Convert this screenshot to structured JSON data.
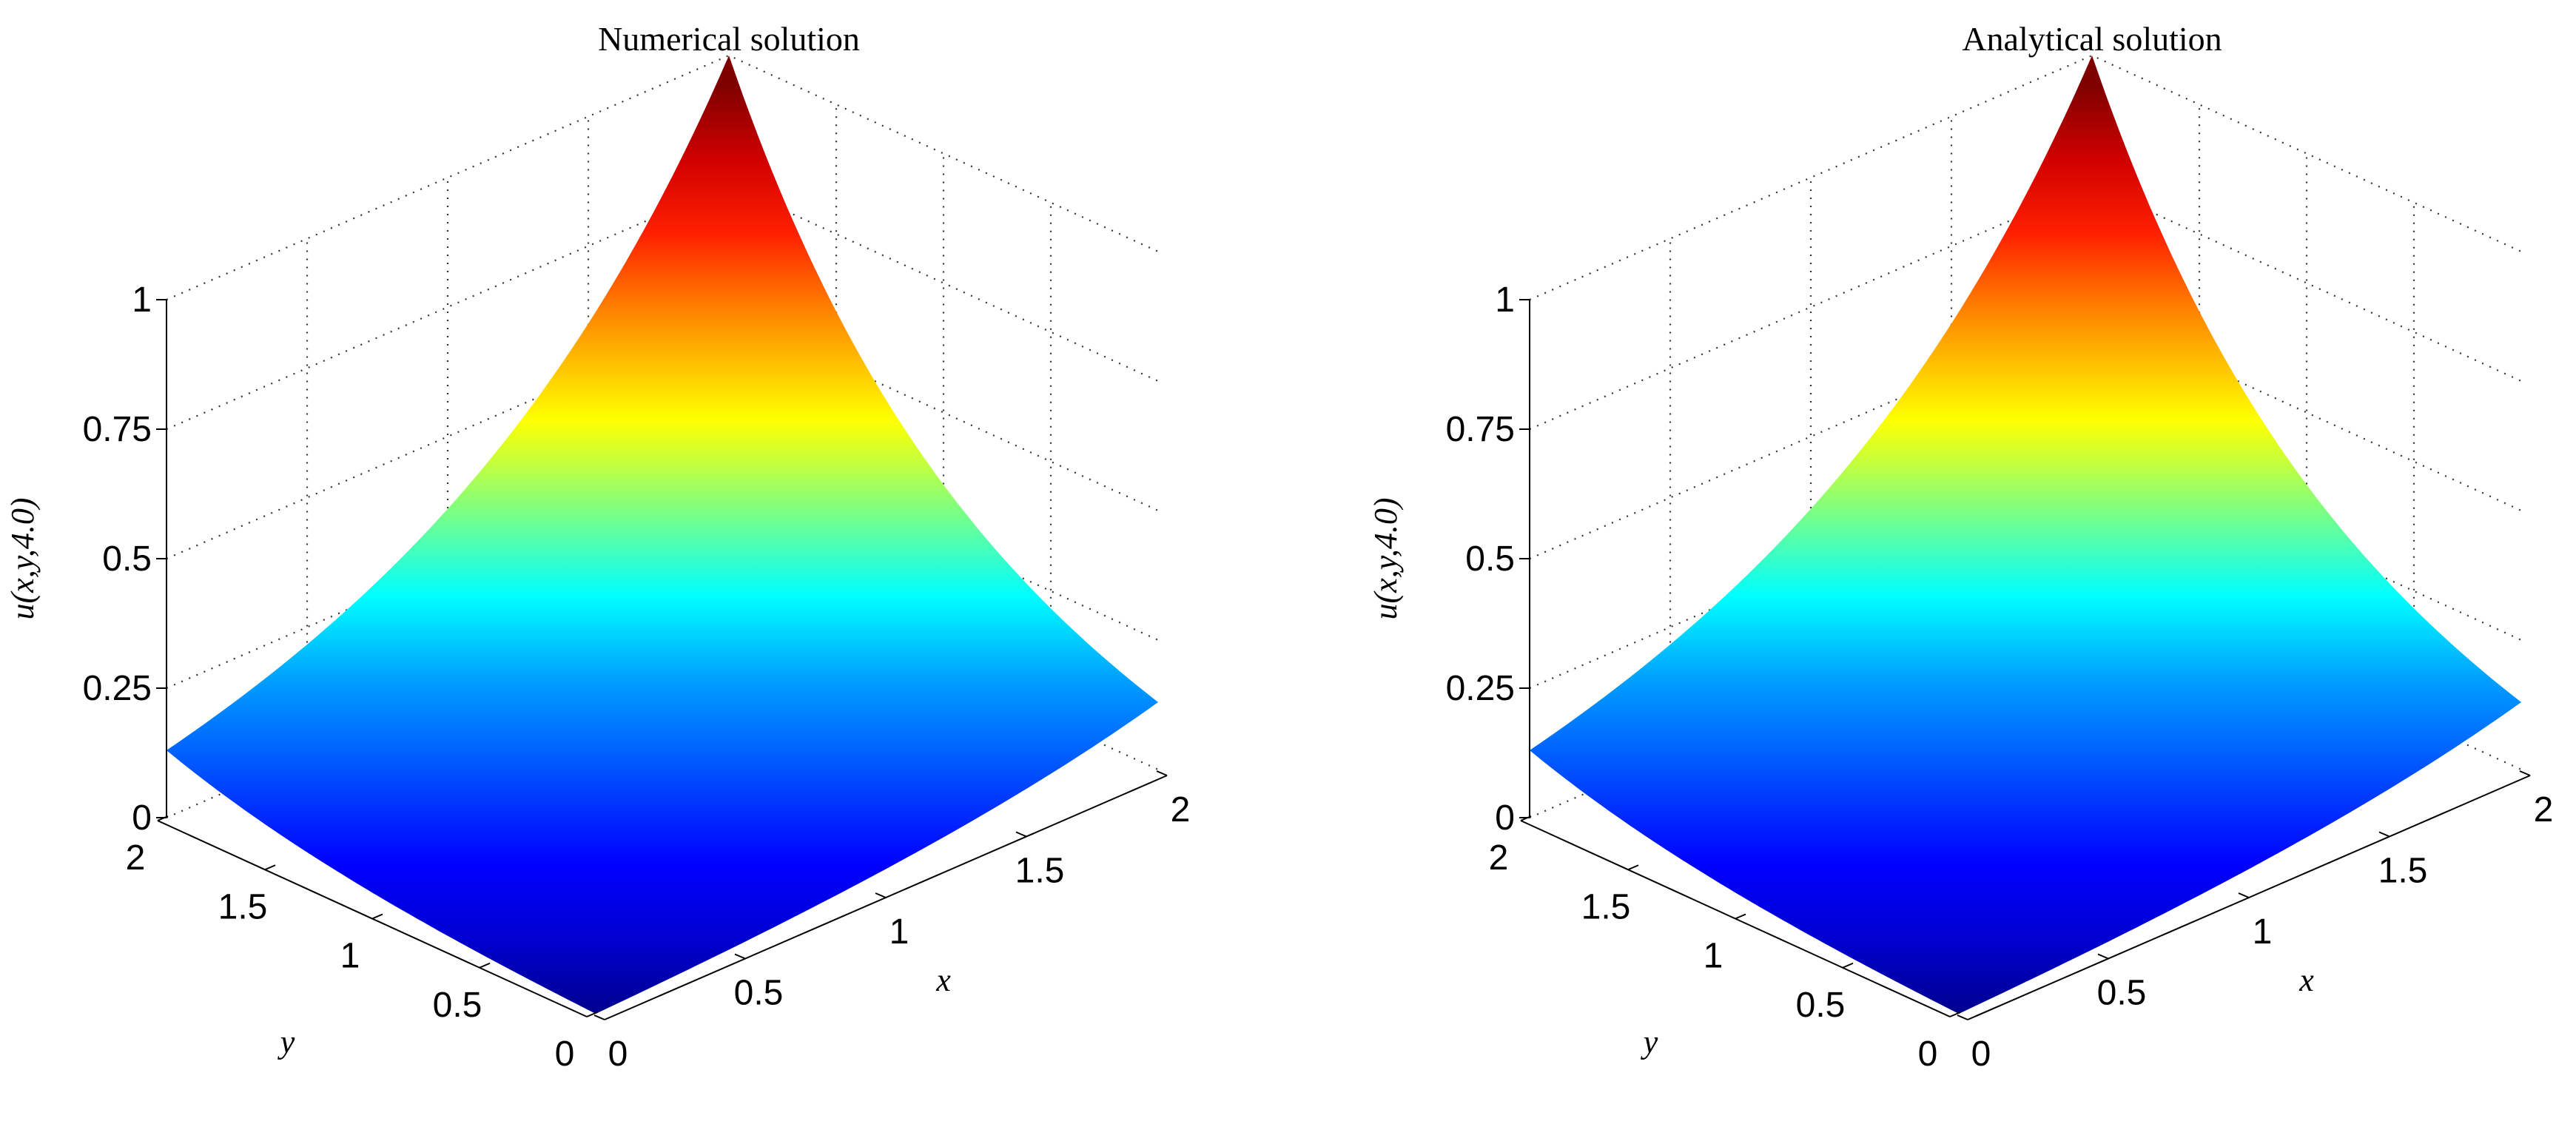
{
  "chart_data": [
    {
      "type": "surface",
      "title": "Numerical solution",
      "xlabel": "x",
      "ylabel": "y",
      "zlabel": "u(x,y,4.0)",
      "xlim": [
        0,
        2
      ],
      "ylim": [
        0,
        2
      ],
      "zlim": [
        0,
        1
      ],
      "xticks": [
        "0",
        "0.5",
        "1",
        "1.5",
        "2"
      ],
      "yticks": [
        "0",
        "0.5",
        "1",
        "1.5",
        "2"
      ],
      "zticks": [
        "0",
        "0.25",
        "0.5",
        "0.75",
        "1"
      ],
      "colormap": "jet",
      "grid": true,
      "corner_values": {
        "u(0,0)": 0.0,
        "u(2,0)": 0.13,
        "u(0,2)": 0.13,
        "u(2,2)": 1.0
      }
    },
    {
      "type": "surface",
      "title": "Analytical solution",
      "xlabel": "x",
      "ylabel": "y",
      "zlabel": "u(x,y,4.0)",
      "xlim": [
        0,
        2
      ],
      "ylim": [
        0,
        2
      ],
      "zlim": [
        0,
        1
      ],
      "xticks": [
        "0",
        "0.5",
        "1",
        "1.5",
        "2"
      ],
      "yticks": [
        "0",
        "0.5",
        "1",
        "1.5",
        "2"
      ],
      "zticks": [
        "0",
        "0.25",
        "0.5",
        "0.75",
        "1"
      ],
      "colormap": "jet",
      "grid": true,
      "corner_values": {
        "u(0,0)": 0.0,
        "u(2,0)": 0.13,
        "u(0,2)": 0.13,
        "u(2,2)": 1.0
      }
    }
  ]
}
